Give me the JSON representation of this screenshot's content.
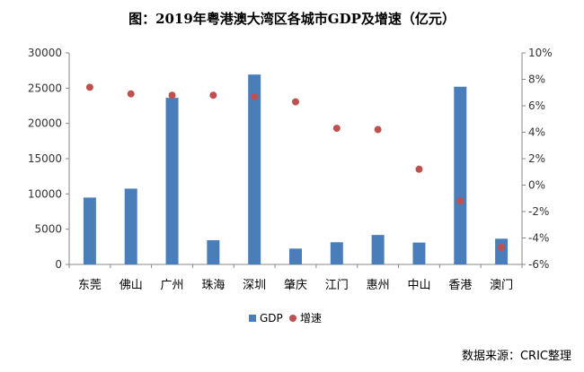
{
  "title": "图：2019年粤港澳大湾区各城市GDP及增速（亿元）",
  "source": "数据来源：CRIC整理",
  "chart_data": {
    "type": "bar",
    "title": "图：2019年粤港澳大湾区各城市GDP及增速（亿元）",
    "categories": [
      "东莞",
      "佛山",
      "广州",
      "珠海",
      "深圳",
      "肇庆",
      "江门",
      "惠州",
      "中山",
      "香港",
      "澳门"
    ],
    "series": [
      {
        "name": "GDP",
        "type": "bar",
        "axis": "left",
        "color": "#4a7ebb",
        "values": [
          9482,
          10751,
          23629,
          3436,
          26927,
          2249,
          3146,
          4177,
          3101,
          25200,
          3650
        ]
      },
      {
        "name": "增速",
        "type": "scatter",
        "axis": "right",
        "color": "#c0504d",
        "values": [
          7.4,
          6.9,
          6.8,
          6.8,
          6.7,
          6.3,
          4.3,
          4.2,
          1.2,
          -1.2,
          -4.7
        ]
      }
    ],
    "y_left": {
      "ylim": [
        0,
        30000
      ],
      "ticks": [
        "0",
        "5000",
        "10000",
        "15000",
        "20000",
        "25000",
        "30000"
      ]
    },
    "y_right": {
      "ylim": [
        -6,
        10
      ],
      "ticks": [
        "-6%",
        "-4%",
        "-2%",
        "0%",
        "2%",
        "4%",
        "6%",
        "8%",
        "10%"
      ]
    },
    "grid": false,
    "legend": "bottom"
  }
}
